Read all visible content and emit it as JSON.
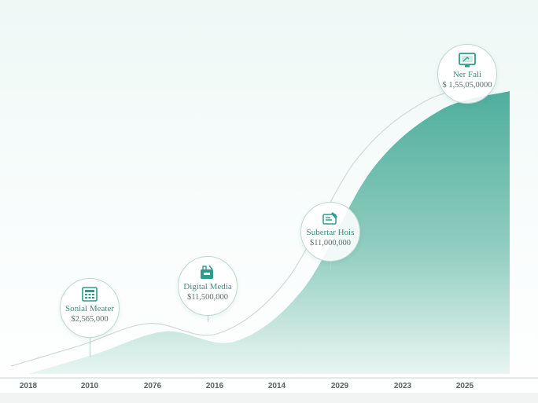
{
  "chart_data": {
    "type": "area",
    "title": "",
    "xlabel": "",
    "ylabel": "",
    "tick_labels": [
      "2018",
      "2010",
      "2076",
      "2016",
      "2014",
      "2029",
      "2023",
      "2025"
    ],
    "series": [
      {
        "values": [
          0,
          1.2,
          2.5,
          1.9,
          5.0,
          12.0,
          15.5,
          16.6
        ]
      }
    ],
    "annotations": [
      {
        "label": "Sonial Meater",
        "amount": "$2,565,000",
        "icon": "calculator-icon",
        "color": "#2e9c8a"
      },
      {
        "label": "Digital Media",
        "amount": "$11,500,000",
        "icon": "media-kit-icon",
        "color": "#2e9c8a"
      },
      {
        "label": "Subertar Hois",
        "amount": "$11,000,000",
        "icon": "pen-tool-icon",
        "color": "#2e9c8a"
      },
      {
        "label": "Ner Fali",
        "amount": "$ 1,55,05,0000",
        "icon": "monitor-icon",
        "color": "#2e9c8a"
      }
    ],
    "colors": {
      "area_top": "#4fae9d",
      "area_bottom": "#e6f4f0",
      "line": "#cfd9d6"
    },
    "grid": false,
    "legend": "none"
  }
}
